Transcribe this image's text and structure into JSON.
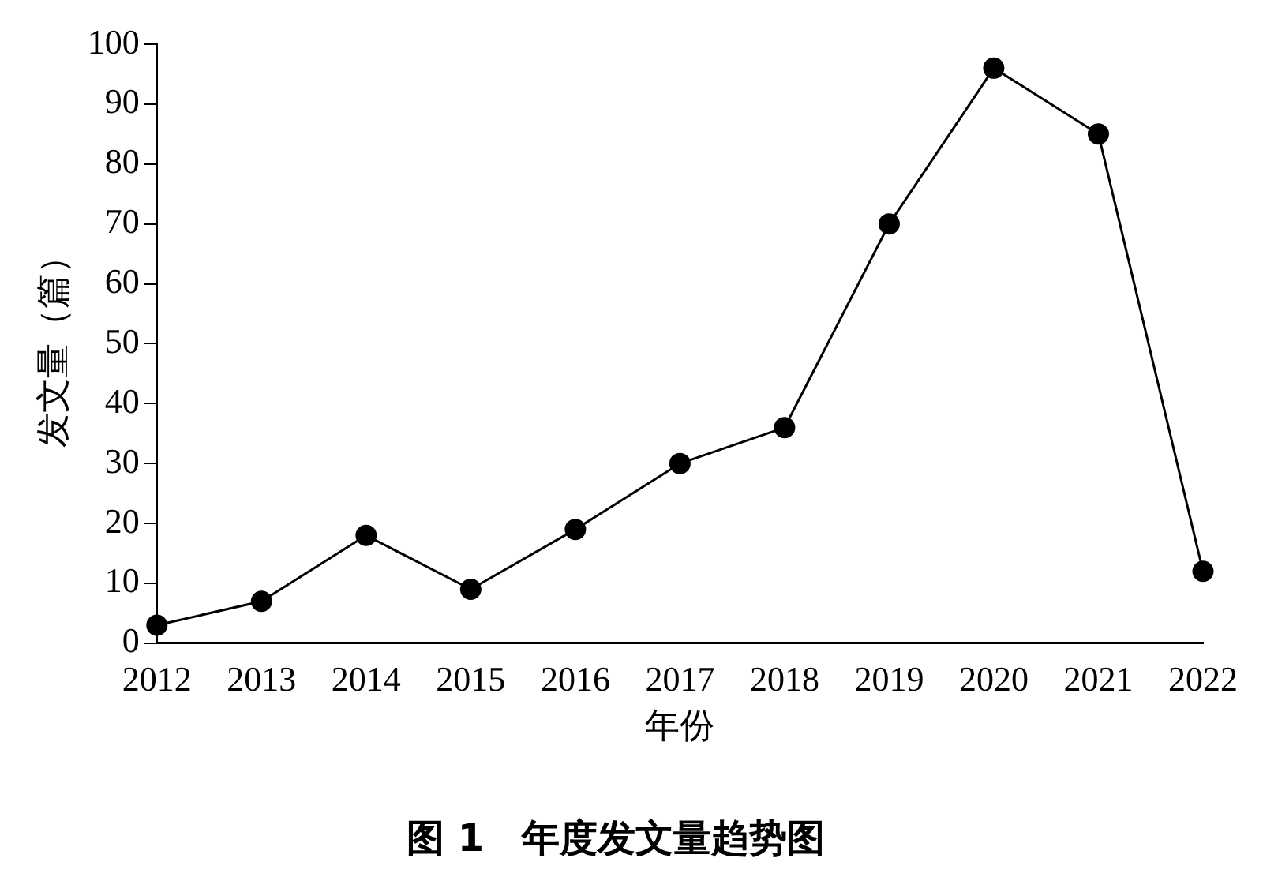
{
  "chart_data": {
    "type": "line",
    "title": "图 1　年度发文量趋势图",
    "xlabel": "年份",
    "ylabel": "发文量（篇）",
    "categories": [
      "2012",
      "2013",
      "2014",
      "2015",
      "2016",
      "2017",
      "2018",
      "2019",
      "2020",
      "2021",
      "2022"
    ],
    "series": [
      {
        "color": "#000000",
        "values": [
          3,
          7,
          18,
          9,
          19,
          30,
          36,
          70,
          96,
          85,
          12
        ]
      }
    ],
    "ylim": [
      0,
      100
    ],
    "yticks": [
      0,
      10,
      20,
      30,
      40,
      50,
      60,
      70,
      80,
      90,
      100
    ],
    "grid": false,
    "legend": false,
    "marker": "circle",
    "line_style": "solid"
  }
}
